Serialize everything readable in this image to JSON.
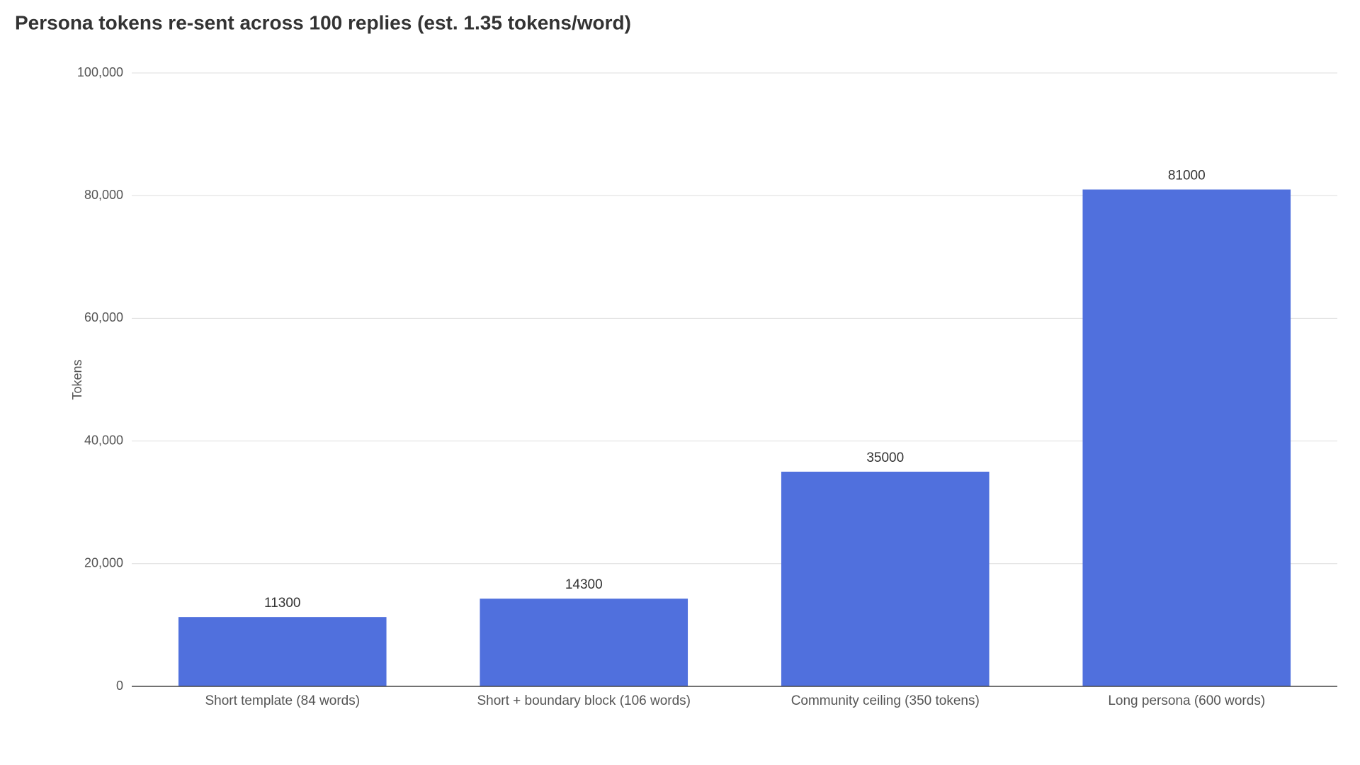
{
  "chart_data": {
    "type": "bar",
    "title": "Persona tokens re-sent across 100 replies (est. 1.35 tokens/word)",
    "y_label": "Tokens",
    "categories": [
      "Short template (84 words)",
      "Short + boundary block (106 words)",
      "Community ceiling (350 tokens)",
      "Long persona (600 words)"
    ],
    "values": [
      11300,
      14300,
      35000,
      81000
    ],
    "color": "#5070dd",
    "ylim": [
      0,
      100000
    ],
    "yticks": [
      0,
      {
        "value": 20000,
        "label": "20,000"
      },
      {
        "value": 40000,
        "label": "40,000"
      },
      {
        "value": 60000,
        "label": "60,000"
      },
      {
        "value": 80000,
        "label": "80,000"
      },
      {
        "value": 100000,
        "label": "100,000"
      }
    ],
    "grid": true
  }
}
